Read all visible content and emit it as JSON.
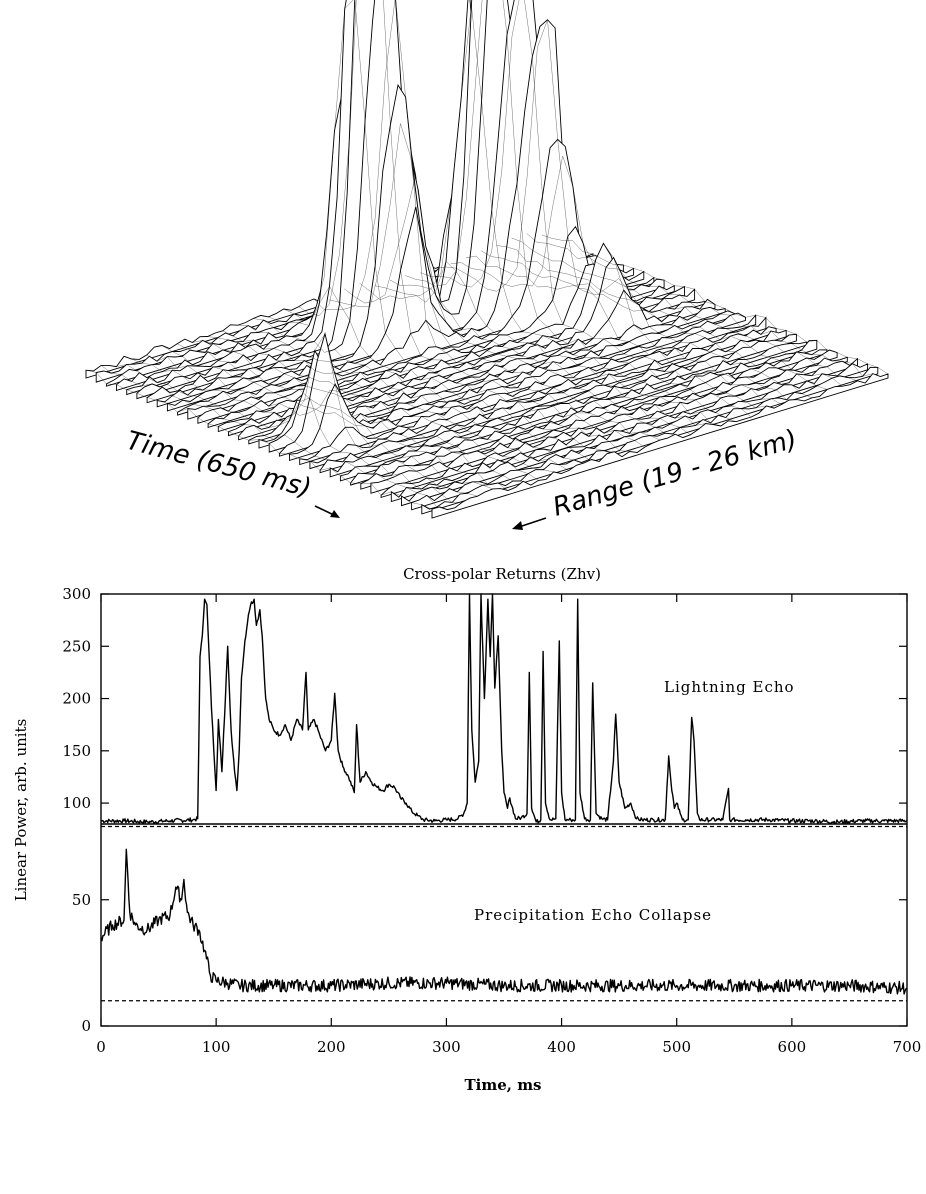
{
  "chart_data": [
    {
      "type": "surface",
      "axis_labels": {
        "time": "Time (650 ms)",
        "range": "Range (19 - 26 km)"
      },
      "time_span_ms": 650,
      "range_km": [
        19,
        26
      ],
      "peaks": [
        {
          "time_frac": 0.1,
          "range_frac": 0.55,
          "height": 0.3
        },
        {
          "time_frac": 0.45,
          "range_frac": 0.18,
          "height": 1.0
        },
        {
          "time_frac": 0.46,
          "range_frac": 0.22,
          "height": 0.95
        },
        {
          "time_frac": 0.5,
          "range_frac": 0.25,
          "height": 0.75
        },
        {
          "time_frac": 0.55,
          "range_frac": 0.2,
          "height": 0.6
        },
        {
          "time_frac": 0.68,
          "range_frac": 0.22,
          "height": 0.9
        },
        {
          "time_frac": 0.7,
          "range_frac": 0.27,
          "height": 0.88
        },
        {
          "time_frac": 0.74,
          "range_frac": 0.3,
          "height": 0.8
        },
        {
          "time_frac": 0.78,
          "range_frac": 0.33,
          "height": 0.7
        },
        {
          "time_frac": 0.8,
          "range_frac": 0.45,
          "height": 0.3
        }
      ]
    },
    {
      "type": "line",
      "title": "Cross-polar Returns (Zhv)",
      "xlabel": "Time, ms",
      "ylabel": "Linear Power, arb. units",
      "xlim": [
        0,
        700
      ],
      "ylim": [
        0,
        300
      ],
      "xticks": [
        0,
        100,
        200,
        300,
        400,
        500,
        600,
        700
      ],
      "yticks": [
        0,
        50,
        100,
        150,
        200,
        250,
        300
      ],
      "grid": false,
      "annotations": [
        {
          "text": "Lightning Echo",
          "x": 490,
          "y": 225
        },
        {
          "text": "Precipitation Echo Collapse",
          "x": 390,
          "y": 41
        }
      ],
      "reference_lines": [
        {
          "style": "dashed",
          "y": 79
        },
        {
          "style": "dashed",
          "y": 10
        }
      ],
      "series": [
        {
          "x": [
            0,
            20,
            40,
            60,
            80,
            84,
            86,
            88,
            90,
            92,
            94,
            96,
            98,
            100,
            102,
            105,
            108,
            110,
            113,
            116,
            118,
            120,
            122,
            125,
            128,
            130,
            133,
            135,
            138,
            140,
            143,
            146,
            150,
            155,
            160,
            165,
            170,
            175,
            178,
            180,
            185,
            190,
            195,
            200,
            203,
            206,
            210,
            215,
            220,
            222,
            225,
            230,
            235,
            240,
            245,
            250,
            255,
            260,
            265,
            270,
            275,
            280,
            290,
            300,
            310,
            315,
            318,
            320,
            322,
            325,
            328,
            330,
            333,
            336,
            338,
            340,
            342,
            345,
            348,
            350,
            353,
            355,
            360,
            365,
            370,
            372,
            374,
            378,
            382,
            384,
            386,
            390,
            395,
            398,
            400,
            403,
            408,
            412,
            414,
            416,
            420,
            425,
            427,
            430,
            435,
            440,
            445,
            447,
            450,
            455,
            460,
            465,
            470,
            480,
            490,
            493,
            495,
            498,
            500,
            503,
            505,
            510,
            513,
            515,
            518,
            520,
            530,
            540,
            545,
            546,
            548,
            560,
            580,
            600,
            620,
            640,
            660,
            680,
            700
          ],
          "y": [
            83,
            83,
            82,
            83,
            84,
            85,
            240,
            260,
            295,
            290,
            240,
            190,
            150,
            112,
            180,
            130,
            200,
            250,
            170,
            130,
            112,
            150,
            220,
            255,
            280,
            290,
            295,
            270,
            285,
            260,
            200,
            180,
            170,
            165,
            175,
            160,
            180,
            170,
            225,
            170,
            180,
            165,
            150,
            160,
            205,
            150,
            135,
            125,
            110,
            175,
            120,
            130,
            120,
            115,
            112,
            118,
            115,
            105,
            100,
            92,
            88,
            84,
            83,
            84,
            85,
            90,
            100,
            300,
            170,
            120,
            140,
            300,
            200,
            295,
            240,
            300,
            210,
            260,
            150,
            110,
            95,
            105,
            85,
            86,
            90,
            225,
            95,
            82,
            84,
            245,
            100,
            84,
            85,
            255,
            110,
            84,
            84,
            84,
            295,
            110,
            85,
            84,
            215,
            90,
            85,
            84,
            140,
            185,
            120,
            95,
            100,
            85,
            84,
            84,
            84,
            145,
            120,
            95,
            100,
            90,
            84,
            84,
            182,
            160,
            90,
            84,
            84,
            84,
            114,
            84,
            84,
            84,
            84,
            83,
            83,
            82,
            83,
            83,
            83
          ]
        },
        {
          "x": [
            0,
            10,
            20,
            22,
            25,
            30,
            40,
            50,
            60,
            65,
            70,
            72,
            75,
            80,
            85,
            90,
            95,
            100,
            110,
            120,
            150,
            200,
            250,
            300,
            350,
            400,
            450,
            500,
            550,
            600,
            650,
            700
          ],
          "y": [
            35,
            40,
            42,
            70,
            45,
            40,
            38,
            42,
            44,
            55,
            50,
            58,
            45,
            40,
            38,
            30,
            20,
            18,
            17,
            16,
            16,
            16,
            17,
            17,
            16,
            16,
            16,
            16,
            16,
            16,
            16,
            15
          ]
        }
      ]
    }
  ]
}
